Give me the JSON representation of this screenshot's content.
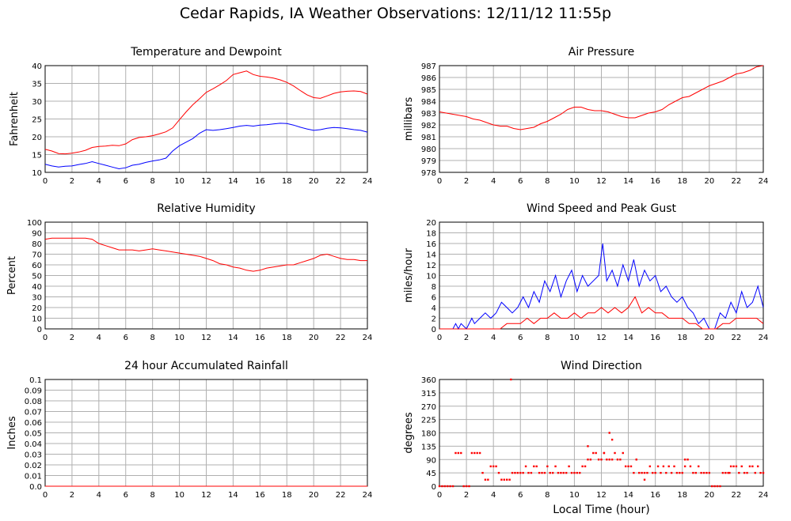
{
  "title": "Cedar Rapids, IA Weather Observations: 12/11/12 11:55p",
  "xlabel_common": "Local Time (hour)",
  "chart_data": [
    {
      "id": "temp",
      "type": "line",
      "title": "Temperature and Dewpoint",
      "xlabel": "",
      "ylabel": "Fahrenheit",
      "xlim": [
        0,
        24
      ],
      "ylim": [
        10,
        40
      ],
      "xticks": [
        "0",
        "2",
        "4",
        "6",
        "8",
        "10",
        "12",
        "14",
        "16",
        "18",
        "20",
        "22",
        "24"
      ],
      "yticks": [
        "10",
        "15",
        "20",
        "25",
        "30",
        "35",
        "40"
      ],
      "grid": true,
      "series": [
        {
          "color": "#ff0000",
          "x": [
            0,
            0.5,
            1,
            1.5,
            2,
            2.5,
            3,
            3.5,
            4,
            4.5,
            5,
            5.5,
            6,
            6.5,
            7,
            7.5,
            8,
            8.5,
            9,
            9.5,
            10,
            10.5,
            11,
            11.5,
            12,
            12.5,
            13,
            13.5,
            14,
            14.5,
            15,
            15.5,
            16,
            16.5,
            17,
            17.5,
            18,
            18.5,
            19,
            19.5,
            20,
            20.5,
            21,
            21.5,
            22,
            22.5,
            23,
            23.5,
            24
          ],
          "y": [
            16.5,
            16,
            15.3,
            15.2,
            15.4,
            15.7,
            16.2,
            17,
            17.3,
            17.4,
            17.6,
            17.5,
            18,
            19.2,
            19.8,
            20,
            20.3,
            20.8,
            21.4,
            22.5,
            24.8,
            27,
            29,
            30.7,
            32.5,
            33.5,
            34.6,
            35.8,
            37.5,
            38,
            38.5,
            37.5,
            37,
            36.8,
            36.5,
            36,
            35.3,
            34.3,
            33,
            31.8,
            31,
            30.8,
            31.5,
            32.2,
            32.6,
            32.8,
            32.9,
            32.7,
            32
          ]
        },
        {
          "color": "#0000ff",
          "x": [
            0,
            0.5,
            1,
            1.5,
            2,
            2.5,
            3,
            3.5,
            4,
            4.5,
            5,
            5.5,
            6,
            6.5,
            7,
            7.5,
            8,
            8.5,
            9,
            9.5,
            10,
            10.5,
            11,
            11.5,
            12,
            12.5,
            13,
            13.5,
            14,
            14.5,
            15,
            15.5,
            16,
            16.5,
            17,
            17.5,
            18,
            18.5,
            19,
            19.5,
            20,
            20.5,
            21,
            21.5,
            22,
            22.5,
            23,
            23.5,
            24
          ],
          "y": [
            12.3,
            11.8,
            11.5,
            11.7,
            11.8,
            12.2,
            12.5,
            13,
            12.5,
            12,
            11.5,
            11,
            11.3,
            12,
            12.3,
            12.8,
            13.2,
            13.5,
            14,
            16,
            17.5,
            18.5,
            19.5,
            21,
            22,
            21.8,
            22,
            22.3,
            22.6,
            23,
            23.2,
            23,
            23.3,
            23.4,
            23.6,
            23.8,
            23.7,
            23.3,
            22.7,
            22.2,
            21.8,
            22,
            22.4,
            22.6,
            22.5,
            22.3,
            22,
            21.8,
            21.3
          ]
        }
      ]
    },
    {
      "id": "pressure",
      "type": "line",
      "title": "Air Pressure",
      "xlabel": "",
      "ylabel": "millibars",
      "xlim": [
        0,
        24
      ],
      "ylim": [
        978,
        987
      ],
      "xticks": [
        "0",
        "2",
        "4",
        "6",
        "8",
        "10",
        "12",
        "14",
        "16",
        "18",
        "20",
        "22",
        "24"
      ],
      "yticks": [
        "978",
        "979",
        "980",
        "981",
        "982",
        "983",
        "984",
        "985",
        "986",
        "987"
      ],
      "grid": true,
      "series": [
        {
          "color": "#ff0000",
          "x": [
            0,
            0.5,
            1,
            1.5,
            2,
            2.5,
            3,
            3.5,
            4,
            4.5,
            5,
            5.5,
            6,
            6.5,
            7,
            7.5,
            8,
            8.5,
            9,
            9.5,
            10,
            10.5,
            11,
            11.5,
            12,
            12.5,
            13,
            13.5,
            14,
            14.5,
            15,
            15.5,
            16,
            16.5,
            17,
            17.5,
            18,
            18.5,
            19,
            19.5,
            20,
            20.5,
            21,
            21.5,
            22,
            22.5,
            23,
            23.5,
            24
          ],
          "y": [
            983.1,
            983,
            982.9,
            982.8,
            982.7,
            982.5,
            982.4,
            982.2,
            982,
            981.9,
            981.9,
            981.7,
            981.6,
            981.7,
            981.8,
            982.1,
            982.3,
            982.6,
            982.9,
            983.3,
            983.5,
            983.5,
            983.3,
            983.2,
            983.2,
            983.1,
            982.9,
            982.7,
            982.6,
            982.6,
            982.8,
            983,
            983.1,
            983.3,
            983.7,
            984,
            984.3,
            984.4,
            984.7,
            985,
            985.3,
            985.5,
            985.7,
            986,
            986.3,
            986.4,
            986.6,
            986.9,
            987
          ]
        }
      ]
    },
    {
      "id": "humidity",
      "type": "line",
      "title": "Relative Humidity",
      "xlabel": "",
      "ylabel": "Percent",
      "xlim": [
        0,
        24
      ],
      "ylim": [
        0,
        100
      ],
      "xticks": [
        "0",
        "2",
        "4",
        "6",
        "8",
        "10",
        "12",
        "14",
        "16",
        "18",
        "20",
        "22",
        "24"
      ],
      "yticks": [
        "0",
        "10",
        "20",
        "30",
        "40",
        "50",
        "60",
        "70",
        "80",
        "90",
        "100"
      ],
      "grid": true,
      "series": [
        {
          "color": "#ff0000",
          "x": [
            0,
            0.5,
            1,
            1.5,
            2,
            2.5,
            3,
            3.5,
            4,
            4.5,
            5,
            5.5,
            6,
            6.5,
            7,
            7.5,
            8,
            8.5,
            9,
            9.5,
            10,
            10.5,
            11,
            11.5,
            12,
            12.5,
            13,
            13.5,
            14,
            14.5,
            15,
            15.5,
            16,
            16.5,
            17,
            17.5,
            18,
            18.5,
            19,
            19.5,
            20,
            20.5,
            21,
            21.5,
            22,
            22.5,
            23,
            23.5,
            24
          ],
          "y": [
            84,
            85,
            85,
            85,
            85,
            85,
            85,
            84,
            80,
            78,
            76,
            74,
            74,
            74,
            73,
            74,
            75,
            74,
            73,
            72,
            71,
            70,
            69,
            68,
            66,
            64,
            61,
            60,
            58,
            57,
            55,
            54,
            55,
            57,
            58,
            59,
            60,
            60,
            62,
            64,
            66,
            69,
            70,
            68,
            66,
            65,
            65,
            64,
            64
          ]
        }
      ]
    },
    {
      "id": "wind",
      "type": "line",
      "title": "Wind Speed and Peak Gust",
      "xlabel": "",
      "ylabel": "miles/hour",
      "xlim": [
        0,
        24
      ],
      "ylim": [
        0,
        20
      ],
      "xticks": [
        "0",
        "2",
        "4",
        "6",
        "8",
        "10",
        "12",
        "14",
        "16",
        "18",
        "20",
        "22",
        "24"
      ],
      "yticks": [
        "0",
        "2",
        "4",
        "6",
        "8",
        "10",
        "12",
        "14",
        "16",
        "18",
        "20"
      ],
      "grid": true,
      "series": [
        {
          "color": "#0000ff",
          "x": [
            0,
            1,
            1.2,
            1.4,
            1.6,
            2,
            2.4,
            2.6,
            3,
            3.4,
            3.8,
            4.2,
            4.6,
            5,
            5.4,
            5.8,
            6.2,
            6.6,
            7,
            7.4,
            7.8,
            8.2,
            8.6,
            9,
            9.4,
            9.8,
            10.2,
            10.6,
            11,
            11.4,
            11.8,
            12.1,
            12.4,
            12.8,
            13.2,
            13.6,
            14,
            14.4,
            14.8,
            15.2,
            15.6,
            16,
            16.4,
            16.8,
            17.2,
            17.6,
            18,
            18.4,
            18.8,
            19.2,
            19.6,
            20,
            20.4,
            20.8,
            21.2,
            21.6,
            22,
            22.4,
            22.8,
            23.2,
            23.6,
            24
          ],
          "y": [
            0,
            0,
            1,
            0,
            1,
            0,
            2,
            1,
            2,
            3,
            2,
            3,
            5,
            4,
            3,
            4,
            6,
            4,
            7,
            5,
            9,
            7,
            10,
            6,
            9,
            11,
            7,
            10,
            8,
            9,
            10,
            16,
            9,
            11,
            8,
            12,
            9,
            13,
            8,
            11,
            9,
            10,
            7,
            8,
            6,
            5,
            6,
            4,
            3,
            1,
            2,
            0,
            0,
            3,
            2,
            5,
            3,
            7,
            4,
            5,
            8,
            4
          ]
        },
        {
          "color": "#ff0000",
          "x": [
            0,
            2,
            4,
            4.5,
            5,
            5.5,
            6,
            6.5,
            7,
            7.5,
            8,
            8.5,
            9,
            9.5,
            10,
            10.5,
            11,
            11.5,
            12,
            12.5,
            13,
            13.5,
            14,
            14.5,
            15,
            15.5,
            16,
            16.5,
            17,
            17.5,
            18,
            18.5,
            19,
            19.5,
            20,
            20.5,
            21,
            21.5,
            22,
            22.5,
            23,
            23.5,
            24
          ],
          "y": [
            0,
            0,
            0,
            0,
            1,
            1,
            1,
            2,
            1,
            2,
            2,
            3,
            2,
            2,
            3,
            2,
            3,
            3,
            4,
            3,
            4,
            3,
            4,
            6,
            3,
            4,
            3,
            3,
            2,
            2,
            2,
            1,
            1,
            0,
            0,
            0,
            1,
            1,
            2,
            2,
            2,
            2,
            1
          ]
        }
      ]
    },
    {
      "id": "rain",
      "type": "line",
      "title": "24 hour Accumulated Rainfall",
      "xlabel": "",
      "ylabel": "Inches",
      "xlim": [
        0,
        24
      ],
      "ylim": [
        0,
        0.1
      ],
      "xticks": [
        "0",
        "2",
        "4",
        "6",
        "8",
        "10",
        "12",
        "14",
        "16",
        "18",
        "20",
        "22",
        "24"
      ],
      "yticks": [
        "0.0",
        "0.01",
        "0.02",
        "0.03",
        "0.04",
        "0.05",
        "0.06",
        "0.07",
        "0.08",
        "0.09",
        "0.1"
      ],
      "grid": true,
      "series": [
        {
          "color": "#ff0000",
          "x": [
            0,
            24
          ],
          "y": [
            0,
            0
          ]
        }
      ]
    },
    {
      "id": "direction",
      "type": "scatter",
      "title": "Wind Direction",
      "xlabel": "Local Time (hour)",
      "ylabel": "degrees",
      "xlim": [
        0,
        24
      ],
      "ylim": [
        0,
        360
      ],
      "xticks": [
        "0",
        "2",
        "4",
        "6",
        "8",
        "10",
        "12",
        "14",
        "16",
        "18",
        "20",
        "22",
        "24"
      ],
      "yticks": [
        "0",
        "45",
        "90",
        "135",
        "180",
        "225",
        "270",
        "315",
        "360"
      ],
      "grid": true,
      "series": [
        {
          "color": "#ff0000",
          "x": [
            0,
            0.2,
            0.4,
            0.6,
            0.8,
            1.0,
            1.2,
            1.4,
            1.6,
            1.8,
            2.0,
            2.2,
            2.4,
            2.6,
            2.8,
            3.0,
            3.2,
            3.4,
            3.6,
            3.8,
            4.0,
            4.2,
            4.4,
            4.6,
            4.8,
            5.0,
            5.2,
            5.4,
            5.6,
            5.8,
            6.0,
            6.2,
            6.4,
            6.6,
            6.8,
            7.0,
            7.2,
            7.4,
            7.6,
            7.8,
            8.0,
            8.2,
            8.4,
            8.6,
            8.8,
            9.0,
            9.2,
            9.4,
            9.6,
            9.8,
            10.0,
            10.2,
            10.4,
            10.6,
            10.8,
            11.0,
            11.2,
            11.4,
            11.6,
            11.8,
            12.0,
            12.2,
            12.4,
            12.6,
            12.8,
            13.0,
            13.2,
            13.4,
            13.6,
            13.8,
            14.0,
            14.2,
            14.4,
            14.6,
            14.8,
            15.0,
            15.2,
            15.4,
            15.6,
            15.8,
            16.0,
            16.2,
            16.4,
            16.6,
            16.8,
            17.0,
            17.2,
            17.4,
            17.6,
            17.8,
            18.0,
            18.2,
            18.4,
            18.6,
            18.8,
            19.0,
            19.2,
            19.4,
            19.6,
            19.8,
            20.0,
            20.2,
            20.4,
            20.6,
            20.8,
            21.0,
            21.2,
            21.4,
            21.6,
            21.8,
            22.0,
            22.2,
            22.4,
            22.6,
            22.8,
            23.0,
            23.2,
            23.4,
            23.6,
            23.8,
            24.0,
            5.3,
            12.6,
            12.8,
            11.0,
            12.2,
            15.2,
            18.2,
            14.6,
            21.5
          ],
          "y": [
            0,
            0,
            0,
            0,
            0,
            0,
            112,
            112,
            112,
            0,
            0,
            0,
            112,
            112,
            112,
            112,
            45,
            22,
            22,
            67,
            67,
            67,
            45,
            22,
            22,
            22,
            22,
            45,
            45,
            45,
            45,
            45,
            67,
            45,
            45,
            67,
            67,
            45,
            45,
            45,
            67,
            45,
            45,
            67,
            45,
            45,
            45,
            45,
            67,
            45,
            45,
            45,
            45,
            67,
            67,
            90,
            90,
            112,
            112,
            90,
            90,
            112,
            90,
            90,
            90,
            112,
            90,
            90,
            112,
            67,
            67,
            67,
            45,
            90,
            45,
            45,
            45,
            45,
            67,
            45,
            45,
            67,
            45,
            67,
            45,
            67,
            45,
            67,
            45,
            45,
            45,
            67,
            90,
            67,
            45,
            45,
            67,
            45,
            45,
            45,
            45,
            0,
            0,
            0,
            0,
            45,
            45,
            45,
            67,
            67,
            67,
            45,
            67,
            45,
            45,
            67,
            67,
            45,
            67,
            45,
            45,
            360,
            180,
            157,
            135,
            112,
            22,
            90,
            90,
            45
          ]
        }
      ]
    }
  ]
}
